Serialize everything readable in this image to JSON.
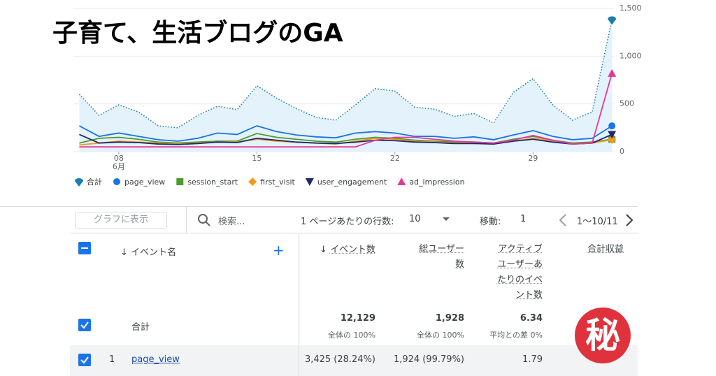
{
  "title": "子育て、生活ブログのGA",
  "chart_data": {
    "type": "line",
    "x": [
      6,
      7,
      8,
      9,
      10,
      11,
      12,
      13,
      14,
      15,
      16,
      17,
      18,
      19,
      20,
      21,
      22,
      23,
      24,
      25,
      26,
      27,
      28,
      29,
      30,
      31,
      32,
      33
    ],
    "xlim": [
      5.7,
      33.1
    ],
    "xticks": [
      {
        "value": 8,
        "label": "08"
      },
      15,
      22,
      29
    ],
    "month_label": "6月",
    "ylim": [
      0,
      1500
    ],
    "yticks": [
      0,
      500,
      {
        "value": 1000,
        "label": "1,000"
      },
      {
        "value": 1500,
        "label": "1,500"
      }
    ],
    "grid": true,
    "series": [
      {
        "name": "合計",
        "color": "#1b7fae",
        "marker": "pin",
        "style": "dotted",
        "fill": "#e3f2fb",
        "values": [
          600,
          380,
          490,
          415,
          270,
          250,
          380,
          475,
          440,
          690,
          560,
          450,
          360,
          330,
          490,
          660,
          635,
          465,
          445,
          370,
          400,
          300,
          620,
          765,
          490,
          330,
          415,
          1380
        ]
      },
      {
        "name": "page_view",
        "color": "#1a73e8",
        "marker": "circle",
        "values": [
          270,
          160,
          195,
          160,
          125,
          110,
          140,
          195,
          180,
          270,
          210,
          175,
          155,
          145,
          195,
          210,
          195,
          160,
          160,
          140,
          155,
          125,
          175,
          220,
          160,
          125,
          140,
          270
        ]
      },
      {
        "name": "session_start",
        "color": "#4e9a2e",
        "marker": "square",
        "values": [
          90,
          140,
          150,
          130,
          100,
          90,
          100,
          110,
          110,
          190,
          150,
          130,
          110,
          100,
          130,
          150,
          140,
          120,
          110,
          100,
          100,
          90,
          130,
          160,
          120,
          90,
          100,
          130
        ]
      },
      {
        "name": "first_visit",
        "color": "#f2991d",
        "marker": "diamond",
        "values": [
          70,
          90,
          110,
          100,
          90,
          80,
          90,
          100,
          100,
          130,
          110,
          100,
          90,
          80,
          110,
          140,
          130,
          110,
          100,
          90,
          90,
          80,
          110,
          140,
          110,
          80,
          90,
          125
        ]
      },
      {
        "name": "user_engagement",
        "color": "#1d2a6b",
        "marker": "triangle-down",
        "values": [
          180,
          90,
          100,
          95,
          80,
          75,
          85,
          100,
          95,
          140,
          120,
          100,
          90,
          85,
          100,
          120,
          115,
          100,
          95,
          85,
          85,
          80,
          110,
          130,
          100,
          80,
          90,
          180
        ]
      },
      {
        "name": "ad_impression",
        "color": "#e23a9a",
        "marker": "triangle-up",
        "values": [
          50,
          50,
          50,
          50,
          50,
          50,
          50,
          50,
          50,
          50,
          50,
          50,
          50,
          50,
          50,
          120,
          150,
          150,
          130,
          110,
          100,
          90,
          120,
          170,
          120,
          80,
          90,
          820
        ]
      }
    ]
  },
  "toolbar": {
    "chart_button": "グラフに表示",
    "search": "検索...",
    "rows_label": "1 ページあたりの行数:",
    "rows_value": "10",
    "goto_label": "移動:",
    "goto_value": "1",
    "range": "1〜10/11"
  },
  "table": {
    "columns": [
      "イベント名",
      "イベント数",
      "総ユーザー数",
      "アクティブユーザーあたりのイベント数",
      "合計収益"
    ],
    "total": {
      "name": "合計",
      "events": "12,129",
      "events_sub": "全体の 100%",
      "users": "1,928",
      "users_sub": "全体の 100%",
      "per_user": "6.34",
      "per_user_sub": "平均との差 0%"
    },
    "rows": [
      {
        "index": "1",
        "name": "page_view",
        "events": "3,425 (28.24%)",
        "users": "1,924 (99.79%)",
        "per_user": "1.79"
      }
    ]
  },
  "badge": "秘"
}
